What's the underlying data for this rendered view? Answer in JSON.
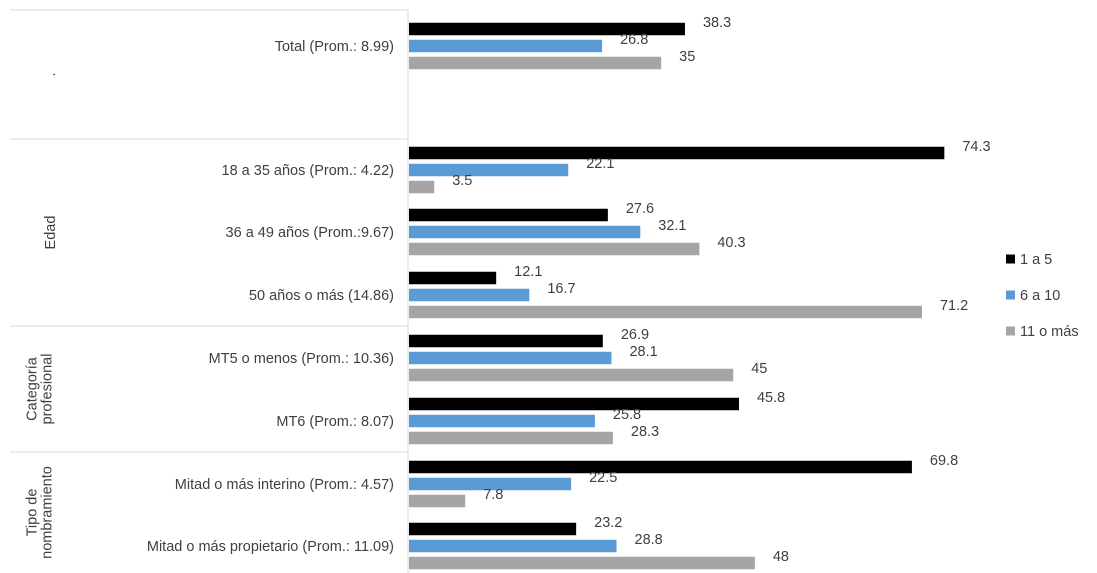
{
  "chart_data": {
    "type": "bar",
    "orientation": "horizontal",
    "xlim": [
      0,
      100
    ],
    "legend_position": "right",
    "colors": {
      "s1": "#000000",
      "s2": "#5B9BD5",
      "s3": "#A5A5A5"
    },
    "series": [
      {
        "name": "1 a 5",
        "values": [
          38.3,
          74.3,
          27.6,
          12.1,
          26.9,
          45.8,
          69.8,
          23.2
        ]
      },
      {
        "name": "6 a 10",
        "values": [
          26.8,
          22.1,
          32.1,
          16.7,
          28.1,
          25.8,
          22.5,
          28.8
        ]
      },
      {
        "name": "11 o más",
        "values": [
          35,
          3.5,
          40.3,
          71.2,
          45,
          28.3,
          7.8,
          48
        ]
      }
    ],
    "groups": [
      {
        "label": ".",
        "categories": [
          "Total (Prom.: 8.99)"
        ]
      },
      {
        "label": "Edad",
        "categories": [
          "18 a 35 años (Prom.: 4.22)",
          "36 a 49 años (Prom.:9.67)",
          "50 años o más (14.86)"
        ]
      },
      {
        "label": "Categoría profesional",
        "label_lines": [
          "Categoría",
          "profesional"
        ],
        "categories": [
          "MT5 o menos (Prom.: 10.36)",
          "MT6 (Prom.: 8.07)"
        ]
      },
      {
        "label": "Tipo de nombramiento",
        "label_lines": [
          "Tipo de",
          "nombramiento"
        ],
        "categories": [
          "Mitad o más interino (Prom.: 4.57)",
          "Mitad o más propietario (Prom.: 11.09)"
        ]
      }
    ]
  }
}
